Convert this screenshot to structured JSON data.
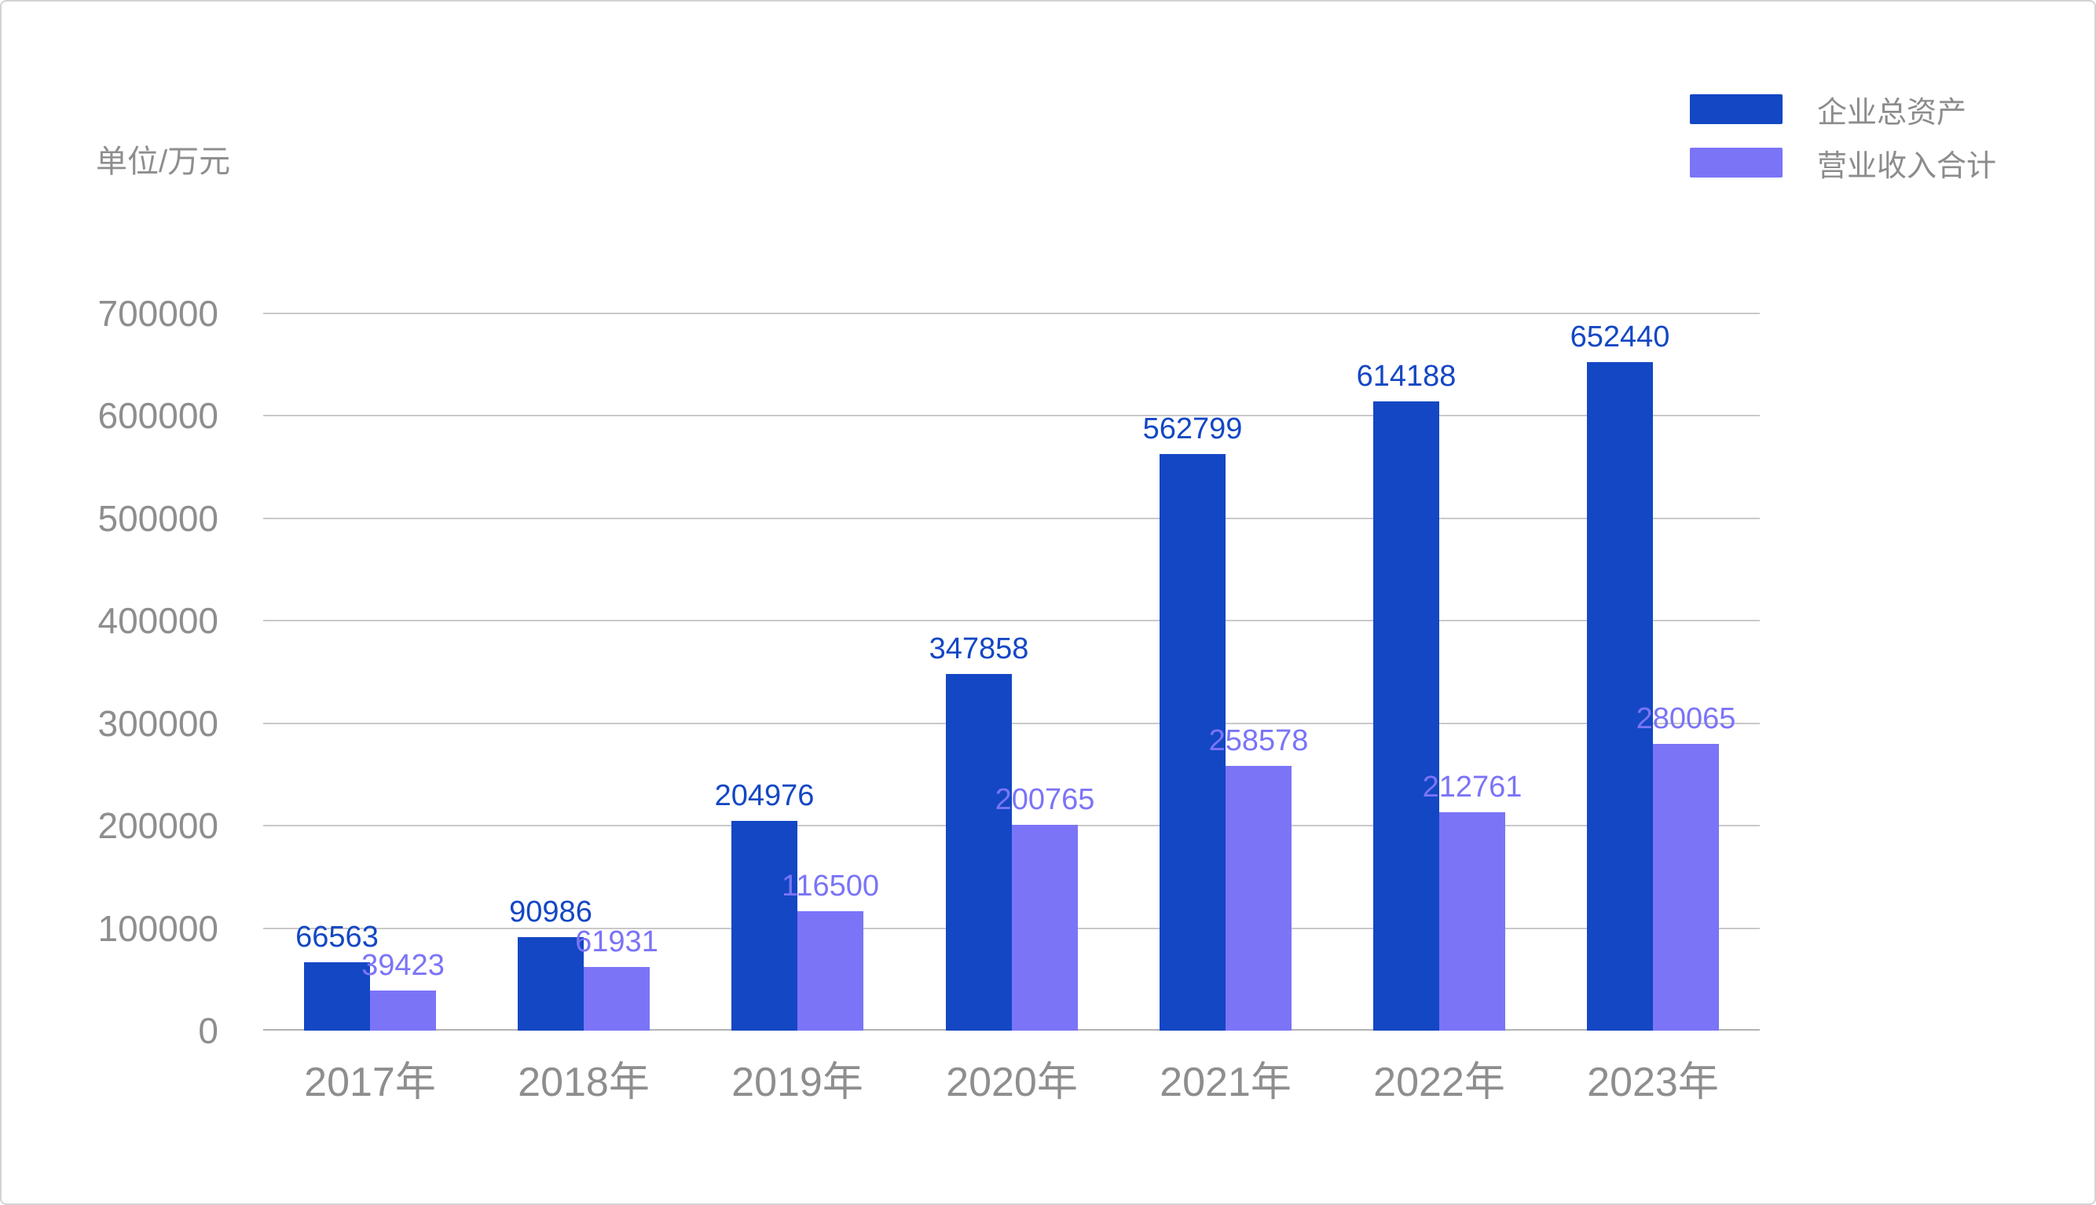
{
  "unit_label": "单位/万元",
  "colors": {
    "series_total_assets": "#1447C4",
    "series_revenue": "#7B74F7",
    "axis_text": "#8E8E8E",
    "legend_text": "#8C8C8C",
    "gridline": "#C9C9C9",
    "baseline": "#B3B3B3"
  },
  "chart_data": {
    "type": "bar",
    "categories": [
      "2017年",
      "2018年",
      "2019年",
      "2020年",
      "2021年",
      "2022年",
      "2023年"
    ],
    "series": [
      {
        "name": "企业总资产",
        "key": "total-assets",
        "color": "#1447C4",
        "values": [
          66563,
          90986,
          204976,
          347858,
          562799,
          614188,
          652440
        ]
      },
      {
        "name": "营业收入合计",
        "key": "revenue",
        "color": "#7B74F7",
        "values": [
          39423,
          61931,
          116500,
          200765,
          258578,
          212761,
          280065
        ]
      }
    ],
    "ylabel": "单位/万元",
    "yticks": [
      0,
      100000,
      200000,
      300000,
      400000,
      500000,
      600000,
      700000
    ],
    "ylim": [
      0,
      700000
    ],
    "grid": true,
    "legend_position": "top-right",
    "data_labels": true
  }
}
